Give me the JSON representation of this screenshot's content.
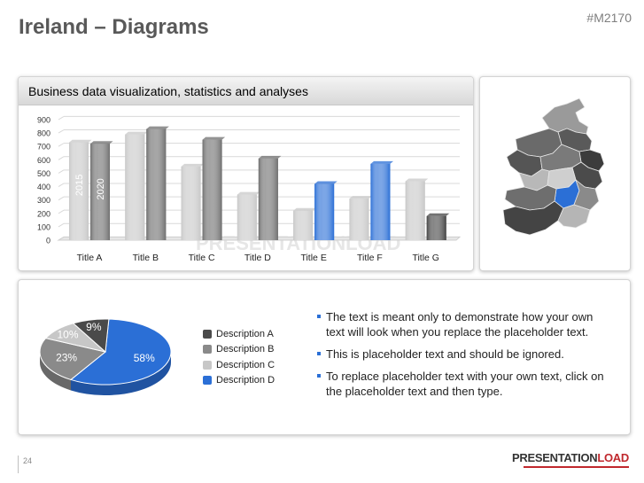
{
  "header": {
    "title": "Ireland – Diagrams",
    "code": "#M2170"
  },
  "chart_panel": {
    "title": "Business data visualization, statistics and analyses",
    "watermark": "PRESENTATIONLOAD"
  },
  "chart_data": [
    {
      "type": "bar",
      "categories": [
        "Title A",
        "Title B",
        "Title C",
        "Title D",
        "Title E",
        "Title F",
        "Title G"
      ],
      "series": [
        {
          "name": "2015",
          "values": [
            730,
            790,
            550,
            340,
            220,
            310,
            440
          ]
        },
        {
          "name": "2020",
          "values": [
            720,
            830,
            750,
            610,
            420,
            570,
            180
          ]
        }
      ],
      "ylim": [
        0,
        900
      ],
      "yticks": [
        0,
        100,
        200,
        300,
        400,
        500,
        600,
        700,
        800,
        900
      ],
      "grid": true,
      "colors": {
        "series1": "#c8c8c8",
        "series2": "#6f6f6f",
        "highlight_series1": "#d4d4d4",
        "highlight_series2": "#2b6fd6",
        "last_series2": "#444444"
      }
    },
    {
      "type": "pie",
      "labels": [
        "Description A",
        "Description B",
        "Description C",
        "Description D"
      ],
      "values": [
        9,
        23,
        10,
        58
      ],
      "value_labels": [
        "9%",
        "23%",
        "10%",
        "58%"
      ],
      "colors": [
        "#4a4a4a",
        "#8a8a8a",
        "#c7c7c7",
        "#2b6fd6"
      ]
    }
  ],
  "bullets": [
    "The text is meant only to demonstrate how your own text will look when you replace the placeholder text.",
    "This is placeholder text and should be ignored.",
    "To replace placeholder text with your own text, click on the placeholder text and then type."
  ],
  "footer": {
    "page": "24",
    "logo_main": "PRESENTATION",
    "logo_accent": "LOAD"
  }
}
